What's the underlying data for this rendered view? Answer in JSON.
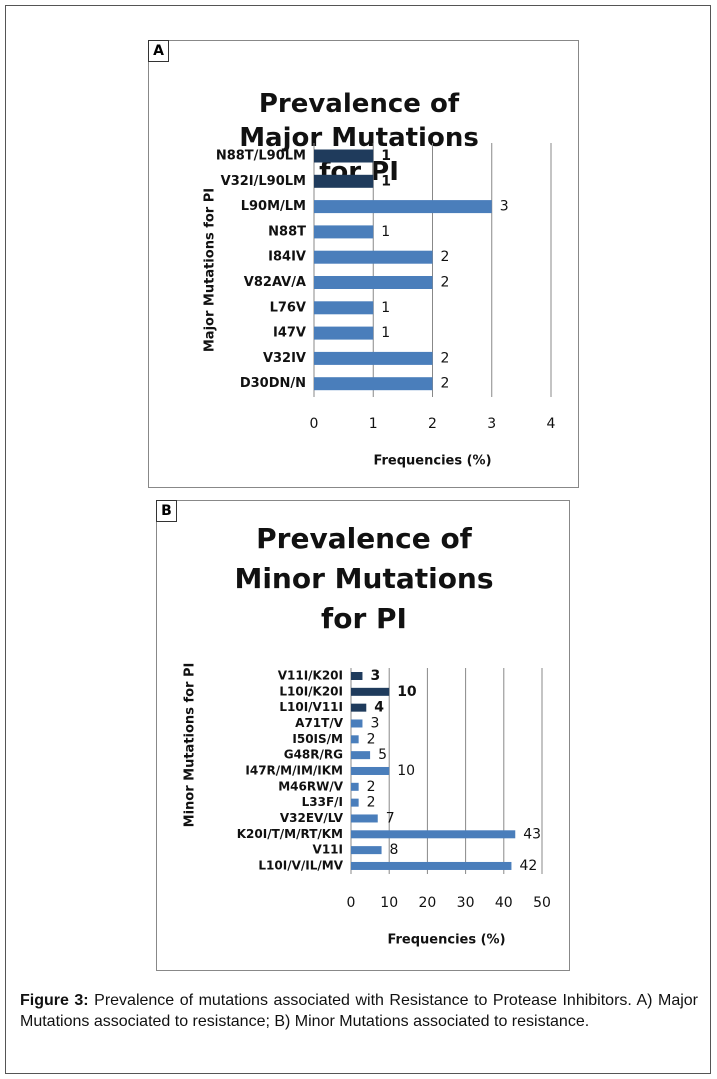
{
  "chart_data": [
    {
      "type": "bar",
      "orientation": "horizontal",
      "panel": "A",
      "title": "Prevalence of Major Mutations for PI",
      "y_label": "Major Mutations for PI",
      "x_label": "Frequencies (%)",
      "categories": [
        "N88T/L90LM",
        "V32I/L90LM",
        "L90M/LM",
        "N88T",
        "I84IV",
        "V82AV/A",
        "L76V",
        "I47V",
        "V32IV",
        "D30DN/N"
      ],
      "values": [
        1,
        1,
        3,
        1,
        2,
        2,
        1,
        1,
        2,
        2
      ],
      "colors": [
        "#1f3b5c",
        "#1f3b5c",
        "#4a7ebb",
        "#4a7ebb",
        "#4a7ebb",
        "#4a7ebb",
        "#4a7ebb",
        "#4a7ebb",
        "#4a7ebb",
        "#4a7ebb"
      ],
      "value_label_bold": [
        true,
        true,
        false,
        false,
        false,
        false,
        false,
        false,
        false,
        false
      ],
      "xlim": [
        0,
        4
      ],
      "xticks": [
        0,
        1,
        2,
        3,
        4
      ],
      "grid": true
    },
    {
      "type": "bar",
      "orientation": "horizontal",
      "panel": "B",
      "title": "Prevalence of Minor Mutations for PI",
      "y_label": "Minor Mutations for PI",
      "x_label": "Frequencies (%)",
      "categories": [
        "V11I/K20I",
        "L10I/K20I",
        "L10I/V11I",
        "A71T/V",
        "I50IS/M",
        "G48R/RG",
        "I47R/M/IM/IKM",
        "M46RW/V",
        "L33F/I",
        "V32EV/LV",
        "K20I/T/M/RT/KM",
        "V11I",
        "L10I/V/IL/MV"
      ],
      "values": [
        3,
        10,
        4,
        3,
        2,
        5,
        10,
        2,
        2,
        7,
        43,
        8,
        42
      ],
      "colors": [
        "#1f3b5c",
        "#1f3b5c",
        "#1f3b5c",
        "#4a7ebb",
        "#4a7ebb",
        "#4a7ebb",
        "#4a7ebb",
        "#4a7ebb",
        "#4a7ebb",
        "#4a7ebb",
        "#4a7ebb",
        "#4a7ebb",
        "#4a7ebb"
      ],
      "value_label_bold": [
        true,
        true,
        true,
        false,
        false,
        false,
        false,
        false,
        false,
        false,
        false,
        false,
        false
      ],
      "xlim": [
        0,
        50
      ],
      "xticks": [
        0,
        10,
        20,
        30,
        40,
        50
      ],
      "grid": true
    }
  ],
  "caption": {
    "label": "Figure 3:",
    "text": "Prevalence of mutations associated with Resistance to Protease Inhibitors. A) Major Mutations associated to resistance; B) Minor Mutations associated to resistance."
  }
}
